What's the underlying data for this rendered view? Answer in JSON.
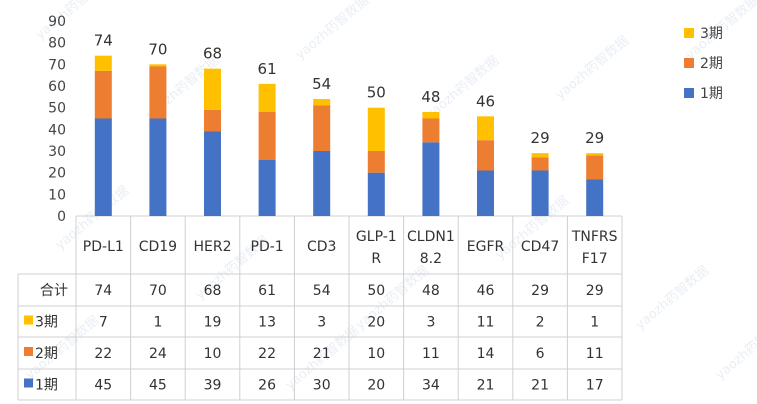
{
  "chart_data": {
    "type": "bar",
    "stacked": true,
    "categories": [
      "PD-L1",
      "CD19",
      "HER2",
      "PD-1",
      "CD3",
      "GLP-1R",
      "CLDN18.2",
      "EGFR",
      "CD47",
      "TNFRSF17"
    ],
    "category_lines": [
      [
        "PD-L1"
      ],
      [
        "CD19"
      ],
      [
        "HER2"
      ],
      [
        "PD-1"
      ],
      [
        "CD3"
      ],
      [
        "GLP-1",
        "R"
      ],
      [
        "CLDN1",
        "8.2"
      ],
      [
        "EGFR"
      ],
      [
        "CD47"
      ],
      [
        "TNFRS",
        "F17"
      ]
    ],
    "series": [
      {
        "name": "1期",
        "color": "#4472C4",
        "values": [
          45,
          45,
          39,
          26,
          30,
          20,
          34,
          21,
          21,
          17
        ]
      },
      {
        "name": "2期",
        "color": "#ED7D31",
        "values": [
          22,
          24,
          10,
          22,
          21,
          10,
          11,
          14,
          6,
          11
        ]
      },
      {
        "name": "3期",
        "color": "#FFC000",
        "values": [
          7,
          1,
          19,
          13,
          3,
          20,
          3,
          11,
          2,
          1
        ]
      }
    ],
    "totals": [
      74,
      70,
      68,
      61,
      54,
      50,
      48,
      46,
      29,
      29
    ],
    "total_label": "合计",
    "ylim": [
      0,
      90
    ],
    "yticks": [
      0,
      10,
      20,
      30,
      40,
      50,
      60,
      70,
      80,
      90
    ],
    "legend_position": "top-right",
    "legend_order": [
      "3期",
      "2期",
      "1期"
    ],
    "data_table": true,
    "grid": false
  },
  "watermark": "yaozh药智数据"
}
